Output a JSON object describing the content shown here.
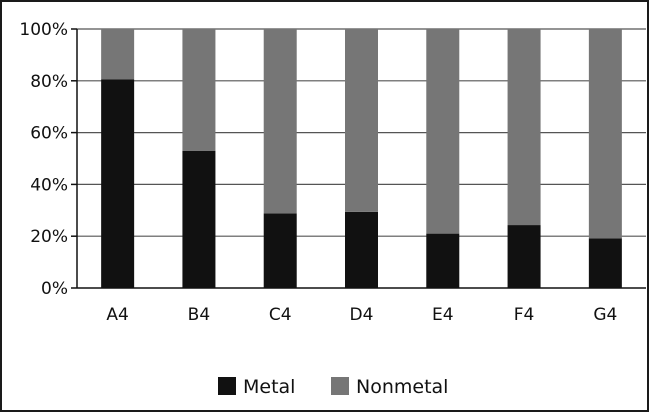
{
  "chart_data": {
    "type": "bar",
    "stacked": true,
    "normalized": true,
    "categories": [
      "A4",
      "B4",
      "C4",
      "D4",
      "E4",
      "F4",
      "G4"
    ],
    "series": [
      {
        "name": "Metal",
        "color": "#111111",
        "values": [
          80.5,
          53,
          28.8,
          29.4,
          21,
          24.3,
          19.2
        ]
      },
      {
        "name": "Nonmetal",
        "color": "#767676",
        "values": [
          19.5,
          47,
          71.2,
          70.6,
          79,
          75.7,
          80.8
        ]
      }
    ],
    "ylim": [
      0,
      100
    ],
    "yticks": [
      "0%",
      "20%",
      "40%",
      "60%",
      "80%",
      "100%"
    ],
    "ytick_values": [
      0,
      20,
      40,
      60,
      80,
      100
    ],
    "grid": true,
    "legend_position": "bottom",
    "title": "",
    "xlabel": "",
    "ylabel": ""
  }
}
